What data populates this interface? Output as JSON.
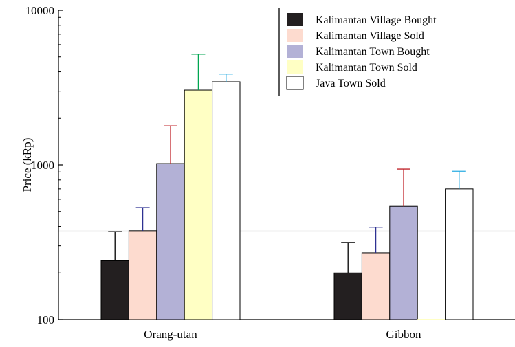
{
  "chart_data": {
    "type": "bar",
    "ylabel": "Price (kRp)",
    "xlabel": "",
    "title": "",
    "yscale": "log",
    "ylim": [
      100,
      10000
    ],
    "yticks": [
      100,
      1000,
      10000
    ],
    "ytick_labels": [
      "100",
      "1000",
      "10000"
    ],
    "categories": [
      "Orang-utan",
      "Gibbon"
    ],
    "legend_position": "top-right",
    "grid": false,
    "series": [
      {
        "name": "Kalimantan Village Bought",
        "color": "#231f20",
        "error_color": "#000000",
        "values": [
          240,
          200
        ],
        "errors": [
          130,
          115
        ]
      },
      {
        "name": "Kalimantan Village Sold",
        "color": "#fddbcf",
        "error_color": "#2e3192",
        "values": [
          375,
          270
        ],
        "errors": [
          155,
          125
        ]
      },
      {
        "name": "Kalimantan Town Bought",
        "color": "#b3b1d6",
        "error_color": "#c1272d",
        "values": [
          1020,
          540
        ],
        "errors": [
          770,
          400
        ]
      },
      {
        "name": "Kalimantan Town Sold",
        "color": "#ffffc4",
        "error_color": "#00a651",
        "values": [
          3050,
          null
        ],
        "errors": [
          2150,
          null
        ]
      },
      {
        "name": "Java Town Sold",
        "color": "#ffffff",
        "error_color": "#29abe2",
        "values": [
          3450,
          700
        ],
        "errors": [
          420,
          210
        ]
      }
    ]
  }
}
